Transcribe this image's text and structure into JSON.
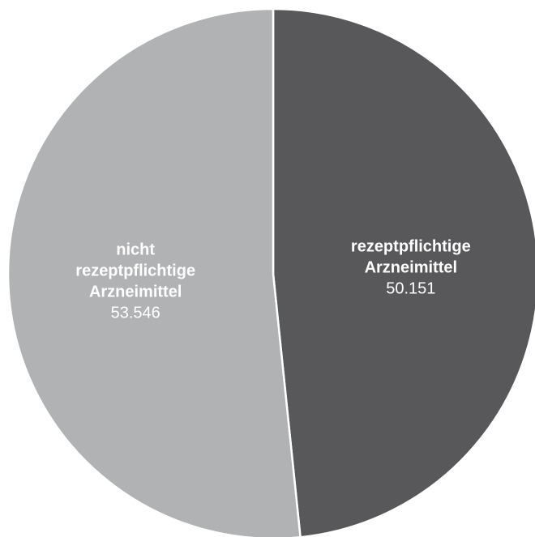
{
  "chart_data": {
    "type": "pie",
    "title": "",
    "slices": [
      {
        "label_lines": [
          "rezeptpflichtige",
          "Arzneimittel"
        ],
        "value": 50151,
        "value_label": "50.151",
        "color": "#58585a"
      },
      {
        "label_lines": [
          "nicht",
          "rezeptpflichtige",
          "Arzneimittel"
        ],
        "value": 53546,
        "value_label": "53.546",
        "color": "#b1b2b4"
      }
    ],
    "start_angle_deg": 0,
    "separator_color": "#ffffff"
  }
}
